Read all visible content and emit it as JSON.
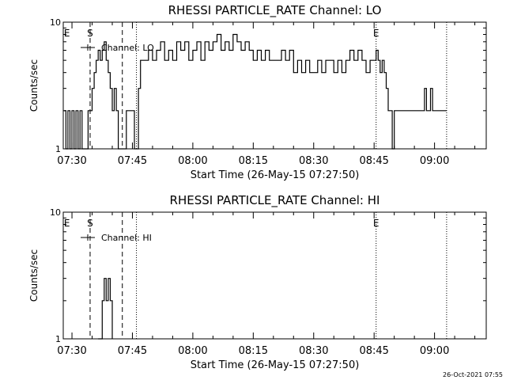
{
  "footer_timestamp": "26-Oct-2021 07:55",
  "chart_data": [
    {
      "type": "line",
      "title": "RHESSI PARTICLE_RATE Channel: LO",
      "xlabel": "Start Time (26-May-15 07:27:50)",
      "ylabel": "Counts/sec",
      "yscale": "log",
      "ylim": [
        1,
        10
      ],
      "xlim": [
        "07:27:50",
        "09:12:50"
      ],
      "x_ticks": [
        "07:30",
        "07:45",
        "08:00",
        "08:15",
        "08:30",
        "08:45",
        "09:00"
      ],
      "y_ticks": [
        "1",
        "10"
      ],
      "legend": {
        "position": "top-left",
        "entries": [
          "Channel: LO"
        ]
      },
      "grid": false,
      "markers": [
        {
          "label": "E",
          "time": "07:28:00",
          "style": "none"
        },
        {
          "label": "S",
          "time": "07:34:30",
          "style": "dashed"
        },
        {
          "label": "",
          "time": "07:42:30",
          "style": "dashed"
        },
        {
          "label": "",
          "time": "07:46:00",
          "style": "dotted"
        },
        {
          "label": "E",
          "time": "08:45:30",
          "style": "dotted"
        },
        {
          "label": "",
          "time": "09:03:00",
          "style": "dotted"
        }
      ],
      "series": [
        {
          "name": "Channel: LO",
          "x": [
            "07:28:00",
            "07:28:30",
            "07:29:00",
            "07:29:30",
            "07:30:00",
            "07:30:30",
            "07:31:00",
            "07:31:30",
            "07:32:00",
            "07:32:30",
            "07:33:00",
            "07:33:30",
            "07:34:00",
            "07:34:30",
            "07:35:00",
            "07:35:30",
            "07:36:00",
            "07:36:30",
            "07:37:00",
            "07:37:30",
            "07:38:00",
            "07:38:30",
            "07:39:00",
            "07:39:30",
            "07:40:00",
            "07:40:30",
            "07:41:00",
            "07:41:30",
            "07:42:00",
            "07:42:30",
            "07:43:00",
            "07:43:30",
            "07:44:00",
            "07:44:30",
            "07:45:00",
            "07:45:30",
            "07:46:00",
            "07:46:30",
            "07:47:00",
            "07:48:00",
            "07:49:00",
            "07:50:00",
            "07:51:00",
            "07:52:00",
            "07:53:00",
            "07:54:00",
            "07:55:00",
            "07:56:00",
            "07:57:00",
            "07:58:00",
            "07:59:00",
            "08:00:00",
            "08:01:00",
            "08:02:00",
            "08:03:00",
            "08:04:00",
            "08:05:00",
            "08:06:00",
            "08:07:00",
            "08:08:00",
            "08:09:00",
            "08:10:00",
            "08:11:00",
            "08:12:00",
            "08:13:00",
            "08:14:00",
            "08:15:00",
            "08:16:00",
            "08:17:00",
            "08:18:00",
            "08:19:00",
            "08:20:00",
            "08:21:00",
            "08:22:00",
            "08:23:00",
            "08:24:00",
            "08:25:00",
            "08:26:00",
            "08:27:00",
            "08:28:00",
            "08:29:00",
            "08:30:00",
            "08:31:00",
            "08:32:00",
            "08:33:00",
            "08:34:00",
            "08:35:00",
            "08:36:00",
            "08:37:00",
            "08:38:00",
            "08:39:00",
            "08:40:00",
            "08:41:00",
            "08:42:00",
            "08:43:00",
            "08:44:00",
            "08:45:00",
            "08:45:30",
            "08:46:00",
            "08:46:30",
            "08:47:00",
            "08:47:30",
            "08:48:00",
            "08:48:30",
            "08:49:00",
            "08:49:30",
            "08:50:00",
            "08:50:30",
            "08:51:00",
            "08:52:00",
            "08:53:00",
            "08:54:00",
            "08:55:00",
            "08:56:00",
            "08:57:00",
            "08:57:30",
            "08:58:00",
            "08:58:30",
            "08:59:00",
            "08:59:30",
            "09:00:00",
            "09:00:30",
            "09:01:00",
            "09:02:00",
            "09:03:00"
          ],
          "y": [
            2,
            1,
            2,
            1,
            2,
            1,
            2,
            1,
            2,
            1,
            1,
            1,
            2,
            2,
            3,
            4,
            5,
            6,
            5,
            6,
            7,
            5,
            4,
            3,
            2,
            3,
            2,
            1,
            1,
            1,
            1,
            2,
            2,
            2,
            2,
            1,
            1,
            3,
            5,
            5,
            6,
            5,
            6,
            7,
            5,
            6,
            5,
            7,
            6,
            7,
            5,
            6,
            7,
            5,
            7,
            6,
            7,
            8,
            6,
            7,
            6,
            8,
            7,
            6,
            7,
            6,
            5,
            6,
            5,
            6,
            5,
            5,
            5,
            6,
            5,
            6,
            4,
            5,
            4,
            5,
            4,
            4,
            5,
            4,
            5,
            5,
            4,
            5,
            4,
            5,
            6,
            5,
            6,
            5,
            4,
            5,
            5,
            6,
            5,
            4,
            5,
            4,
            3,
            2,
            2,
            1,
            2,
            2,
            2,
            2,
            2,
            2,
            2,
            2,
            2,
            3,
            2,
            2,
            3,
            2,
            2,
            2,
            2,
            2,
            2
          ]
        }
      ]
    },
    {
      "type": "line",
      "title": "RHESSI PARTICLE_RATE Channel: HI",
      "xlabel": "Start Time (26-May-15 07:27:50)",
      "ylabel": "Counts/sec",
      "yscale": "log",
      "ylim": [
        1,
        10
      ],
      "xlim": [
        "07:27:50",
        "09:12:50"
      ],
      "x_ticks": [
        "07:30",
        "07:45",
        "08:00",
        "08:15",
        "08:30",
        "08:45",
        "09:00"
      ],
      "y_ticks": [
        "1",
        "10"
      ],
      "legend": {
        "position": "top-left",
        "entries": [
          "Channel: HI"
        ]
      },
      "grid": false,
      "markers": [
        {
          "label": "E",
          "time": "07:28:00",
          "style": "none"
        },
        {
          "label": "S",
          "time": "07:34:30",
          "style": "dashed"
        },
        {
          "label": "",
          "time": "07:42:30",
          "style": "dashed"
        },
        {
          "label": "",
          "time": "07:46:00",
          "style": "dotted"
        },
        {
          "label": "E",
          "time": "08:45:30",
          "style": "dotted"
        },
        {
          "label": "",
          "time": "09:03:00",
          "style": "dotted"
        }
      ],
      "series": [
        {
          "name": "Channel: HI",
          "x": [
            "07:36:30",
            "07:37:00",
            "07:37:30",
            "07:38:00",
            "07:38:30",
            "07:39:00",
            "07:39:30",
            "07:40:00"
          ],
          "y": [
            1,
            1,
            2,
            3,
            2,
            3,
            2,
            1
          ]
        }
      ]
    }
  ]
}
